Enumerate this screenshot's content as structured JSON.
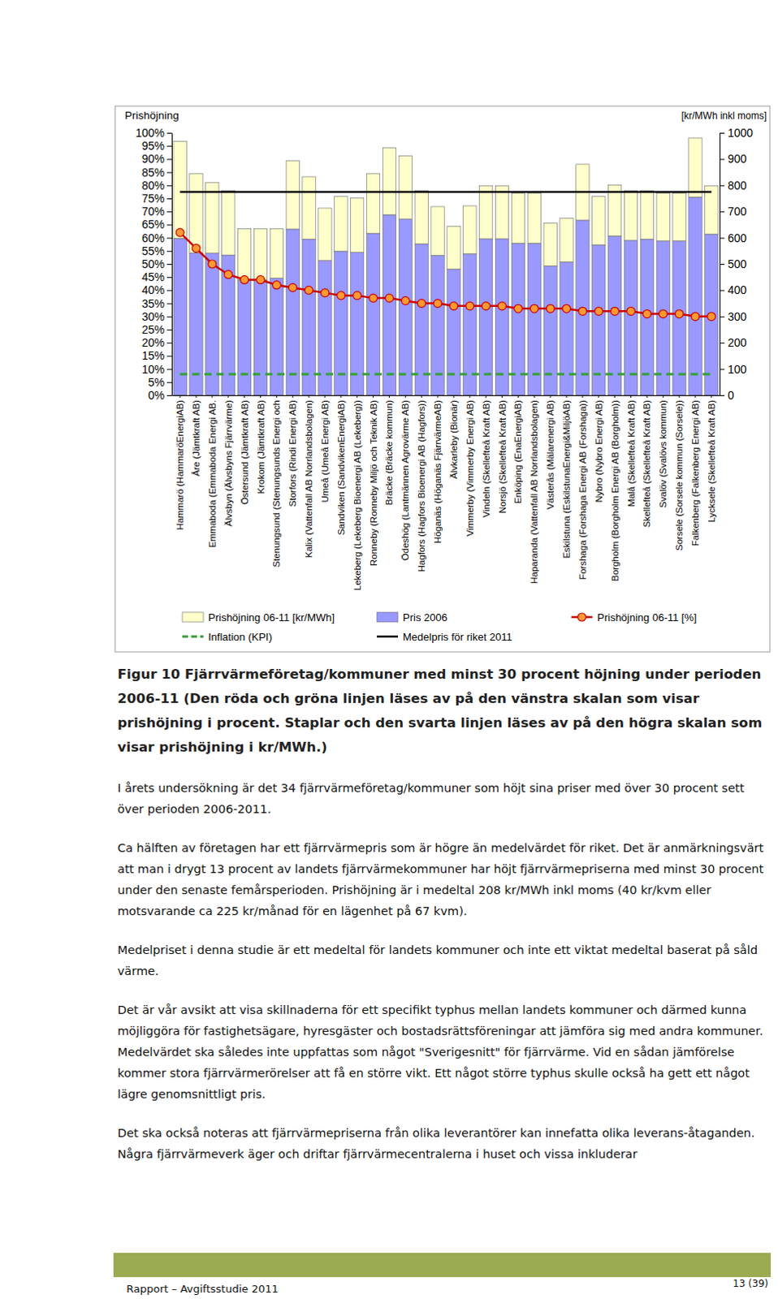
{
  "chart_data": {
    "type": "bar",
    "stacked": true,
    "legend": "bottom",
    "tick_labels": true,
    "y_axis_label": "Prishöjning",
    "y2_axis_label": "[kr/MWh inkl moms]",
    "categories": [
      "Hammarö (HammaröEnergiAB)",
      "Åre (Jämtkraft AB)",
      "Emmaboda (Emmaboda Energi AB.",
      "Älvsbyn (Älvsbyns Fjärrvärme)",
      "Östersund (Jämtkraft AB)",
      "Krokom (Jämtkraft AB)",
      "Stenungsund (Stenungsunds Energi och",
      "Storfors (Rindi Energi AB)",
      "Kalix (Vattenfall AB Norrlandsbolagen)",
      "Umeå (Umeå Energi AB)",
      "Sandviken (SandvikenEnergiAB)",
      "Lekeberg (Lekeberg Bioenergi AB (Lekeberg))",
      "Ronneby (Ronneby Miljö och Teknik AB)",
      "Bräcke (Bräcke kommun)",
      "Ödeshög (Lantmännen Agrovärme AB)",
      "Hagfors (Hagfors Bioenergi AB (Hagfors))",
      "Höganäs (Höganäs FjärrvärmeAB)",
      "Älvkarleby (Bionär)",
      "Vimmerby (Vimmerby Energi AB)",
      "Vindeln (Skellefteå Kraft AB)",
      "Norsjö (Skellefteå Kraft AB)",
      "Enköping (EnaEnergiAB)",
      "Haparanda (Vattenfall AB Norrlandsbolagen)",
      "Västerås (Mälarenergi AB)",
      "Eskilstuna (EskilstunaEnergi&MiljöAB)",
      "Forshaga (Forshaga Energi AB (Forshaga))",
      "Nybro (Nybro Energi AB)",
      "Borgholm (Borgholm Energi AB (Borgholm))",
      "Malå (Skellefteå Kraft AB)",
      "Skellefteå (Skellefteå Kraft AB)",
      "Svalöv (Svalövs kommun)",
      "Sorsele (Sorsele kommun (Sorsele))",
      "Falkenberg (Falkenberg Energi AB)",
      "Lycksele (Skellefteå Kraft AB)"
    ],
    "ylim": [
      0,
      100
    ],
    "yticks": [
      {
        "value": 0,
        "label": "0%"
      },
      {
        "value": 5,
        "label": "5%"
      },
      {
        "value": 10,
        "label": "10%"
      },
      {
        "value": 15,
        "label": "15%"
      },
      {
        "value": 20,
        "label": "20%"
      },
      {
        "value": 25,
        "label": "25%"
      },
      {
        "value": 30,
        "label": "30%"
      },
      {
        "value": 35,
        "label": "35%"
      },
      {
        "value": 40,
        "label": "40%"
      },
      {
        "value": 45,
        "label": "45%"
      },
      {
        "value": 50,
        "label": "50%"
      },
      {
        "value": 55,
        "label": "55%"
      },
      {
        "value": 60,
        "label": "60%"
      },
      {
        "value": 65,
        "label": "65%"
      },
      {
        "value": 70,
        "label": "70%"
      },
      {
        "value": 75,
        "label": "75%"
      },
      {
        "value": 80,
        "label": "80%"
      },
      {
        "value": 85,
        "label": "85%"
      },
      {
        "value": 90,
        "label": "90%"
      },
      {
        "value": 95,
        "label": "95%"
      },
      {
        "value": 100,
        "label": "100%"
      }
    ],
    "y2lim": [
      0,
      1000
    ],
    "y2ticks": [
      0,
      100,
      200,
      300,
      400,
      500,
      600,
      700,
      800,
      900,
      1000
    ],
    "series": [
      {
        "name": "Prishöjning 06-11 [kr/MWh]",
        "type": "bar",
        "axis": "y2",
        "color": "#ffffcc",
        "values": [
          370,
          303,
          270,
          245,
          194,
          194,
          188,
          260,
          238,
          200,
          208,
          207,
          228,
          255,
          241,
          202,
          186,
          163,
          183,
          202,
          202,
          191,
          191,
          163,
          167,
          213,
          184,
          194,
          189,
          184,
          182,
          182,
          226,
          184
        ]
      },
      {
        "name": "Pris 2006",
        "type": "bar",
        "axis": "y2",
        "color": "#9999ff",
        "values": [
          598,
          542,
          541,
          534,
          440,
          440,
          446,
          633,
          595,
          513,
          549,
          544,
          617,
          688,
          671,
          577,
          533,
          481,
          539,
          596,
          596,
          579,
          579,
          493,
          508,
          667,
          573,
          607,
          590,
          595,
          588,
          588,
          755,
          614
        ]
      },
      {
        "name": "Prishöjning 06-11 [%]",
        "type": "line",
        "color": "#cc0000",
        "marker": "circle",
        "values": [
          62,
          56,
          50,
          46,
          44,
          44,
          42,
          41,
          40,
          39,
          38,
          38,
          37,
          37,
          36,
          35,
          35,
          34,
          34,
          34,
          34,
          33,
          33,
          33,
          33,
          32,
          32,
          32,
          32,
          31,
          31,
          31,
          30,
          30
        ]
      },
      {
        "name": "Inflation (KPI)",
        "type": "line",
        "color": "#33a033",
        "line_style": "dashed",
        "values": [
          8,
          8,
          8,
          8,
          8,
          8,
          8,
          8,
          8,
          8,
          8,
          8,
          8,
          8,
          8,
          8,
          8,
          8,
          8,
          8,
          8,
          8,
          8,
          8,
          8,
          8,
          8,
          8,
          8,
          8,
          8,
          8,
          8,
          8
        ]
      },
      {
        "name": "Medelpris för riket 2011",
        "type": "line",
        "axis": "y2",
        "color": "#000000",
        "values": [
          775,
          775,
          775,
          775,
          775,
          775,
          775,
          775,
          775,
          775,
          775,
          775,
          775,
          775,
          775,
          775,
          775,
          775,
          775,
          775,
          775,
          775,
          775,
          775,
          775,
          775,
          775,
          775,
          775,
          775,
          775,
          775,
          775,
          775
        ]
      }
    ]
  },
  "document": {
    "caption": "Figur 10 Fjärrvärmeföretag/kommuner med minst 30 procent höjning under perioden 2006-11 (Den röda och gröna linjen läses av på den vänstra skalan som visar prishöjning i procent. Staplar och den svarta linjen läses av på den högra skalan som visar prishöjning i kr/MWh.)",
    "paragraphs": [
      "I årets undersökning är det 34 fjärrvärmeföretag/kommuner som höjt sina priser med över 30 procent sett över perioden 2006-2011.",
      "Ca hälften av företagen har ett fjärrvärmepris som är högre än medelvärdet för riket. Det är anmärkningsvärt att man i drygt 13 procent av landets fjärrvärmekommuner har höjt fjärrvärmepriserna med minst 30 procent under den senaste femårsperioden. Prishöjning är i medeltal 208 kr/MWh inkl moms (40 kr/kvm eller motsvarande ca 225 kr/månad för en lägenhet på 67 kvm).",
      "Medelpriset i denna studie är ett medeltal för landets kommuner och inte ett viktat medeltal baserat på såld värme.",
      "Det är vår avsikt att visa skillnaderna för ett specifikt typhus mellan landets kommuner och därmed kunna möjliggöra för fastighetsägare, hyresgäster och bostadsrättsföreningar att jämföra sig med andra kommuner. Medelvärdet ska således inte uppfattas som något \"Sverigesnitt\" för fjärrvärme. Vid en sådan jämförelse kommer stora fjärrvärmerörelser att få en större vikt. Ett något större typhus skulle också ha gett ett något lägre genomsnittligt pris.",
      "Det ska också noteras att fjärrvärmepriserna från olika leverantörer kan innefatta olika leverans-åtaganden. Några fjärrvärmeverk äger och driftar fjärrvärmecentralerna i huset och vissa inkluderar"
    ],
    "footer_left": "Rapport – Avgiftsstudie 2011",
    "page_number": "13 (39)"
  }
}
